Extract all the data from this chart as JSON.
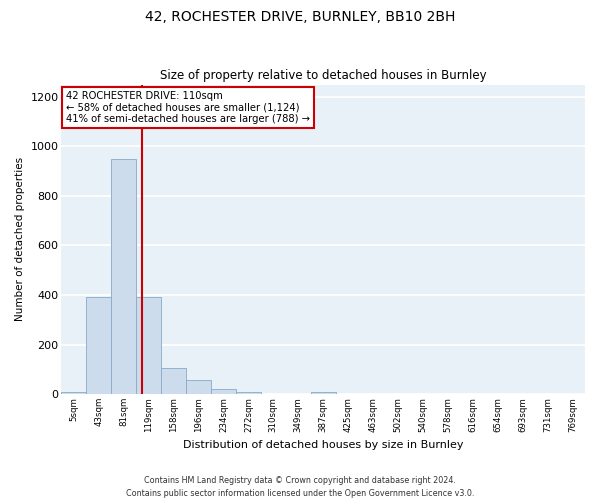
{
  "title": "42, ROCHESTER DRIVE, BURNLEY, BB10 2BH",
  "subtitle": "Size of property relative to detached houses in Burnley",
  "xlabel": "Distribution of detached houses by size in Burnley",
  "ylabel": "Number of detached properties",
  "categories": [
    "5sqm",
    "43sqm",
    "81sqm",
    "119sqm",
    "158sqm",
    "196sqm",
    "234sqm",
    "272sqm",
    "310sqm",
    "349sqm",
    "387sqm",
    "425sqm",
    "463sqm",
    "502sqm",
    "540sqm",
    "578sqm",
    "616sqm",
    "654sqm",
    "693sqm",
    "731sqm",
    "769sqm"
  ],
  "values": [
    10,
    390,
    950,
    390,
    105,
    55,
    22,
    10,
    0,
    0,
    10,
    0,
    0,
    0,
    0,
    0,
    0,
    0,
    0,
    0,
    0
  ],
  "bar_color": "#ccdcec",
  "bar_edge_color": "#88aac8",
  "background_color": "#e8f0f8",
  "grid_color": "#ffffff",
  "vline_x": 2.72,
  "vline_color": "#cc0000",
  "annotation_line1": "42 ROCHESTER DRIVE: 110sqm",
  "annotation_line2": "← 58% of detached houses are smaller (1,124)",
  "annotation_line3": "41% of semi-detached houses are larger (788) →",
  "annotation_box_color": "#ffffff",
  "annotation_box_edge": "#cc0000",
  "footnote": "Contains HM Land Registry data © Crown copyright and database right 2024.\nContains public sector information licensed under the Open Government Licence v3.0.",
  "ylim": [
    0,
    1250
  ],
  "yticks": [
    0,
    200,
    400,
    600,
    800,
    1000,
    1200
  ]
}
